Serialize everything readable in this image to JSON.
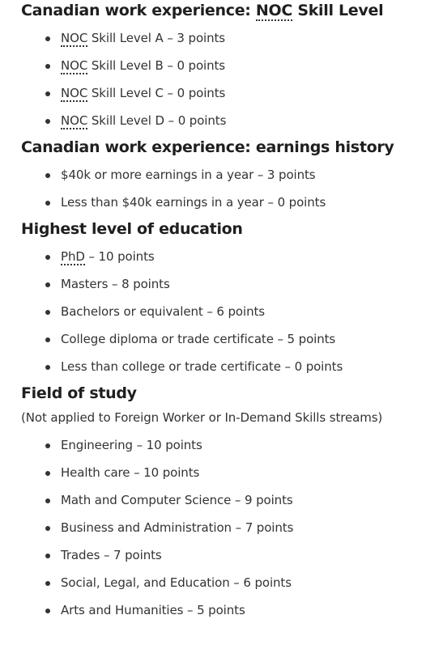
{
  "sections": {
    "noc": {
      "heading_prefix": "Canadian work experience: ",
      "heading_abbr": "NOC",
      "heading_suffix": " Skill Level",
      "items": [
        {
          "abbr": "NOC",
          "text": " Skill Level A – 3 points"
        },
        {
          "abbr": "NOC",
          "text": " Skill Level B – 0 points"
        },
        {
          "abbr": "NOC",
          "text": " Skill Level C – 0 points"
        },
        {
          "abbr": "NOC",
          "text": " Skill Level D – 0 points"
        }
      ]
    },
    "earnings": {
      "heading": "Canadian work experience: earnings history",
      "items": [
        "$40k or more earnings in a year – 3 points",
        "Less than $40k earnings in a year – 0 points"
      ]
    },
    "education": {
      "heading": "Highest level of education",
      "first_item": {
        "abbr": "PhD",
        "text": " – 10 points"
      },
      "items": [
        "Masters – 8 points",
        "Bachelors or equivalent – 6 points",
        "College diploma or trade certificate – 5 points",
        "Less than college or trade certificate – 0 points"
      ]
    },
    "field": {
      "heading": "Field of study",
      "note": "(Not applied to Foreign Worker or In-Demand Skills streams)",
      "items": [
        "Engineering – 10 points",
        "Health care – 10 points",
        "Math and Computer Science – 9 points",
        "Business and Administration – 7 points",
        "Trades – 7 points",
        "Social, Legal, and Education – 6 points",
        "Arts and Humanities – 5 points"
      ]
    }
  }
}
